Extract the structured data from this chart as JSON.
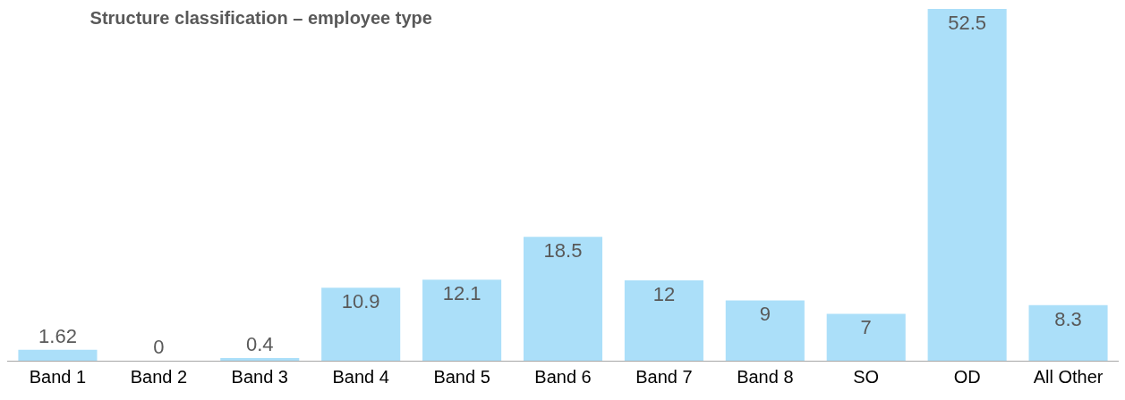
{
  "chart_data": {
    "type": "bar",
    "title": "Structure classification – employee type",
    "categories": [
      "Band 1",
      "Band 2",
      "Band 3",
      "Band 4",
      "Band 5",
      "Band 6",
      "Band 7",
      "Band 8",
      "SO",
      "OD",
      "All Other"
    ],
    "values": [
      1.62,
      0,
      0.4,
      10.9,
      12.1,
      18.5,
      12,
      9,
      7,
      52.5,
      8.3
    ],
    "color": "#abdff9",
    "data_labels": true
  }
}
